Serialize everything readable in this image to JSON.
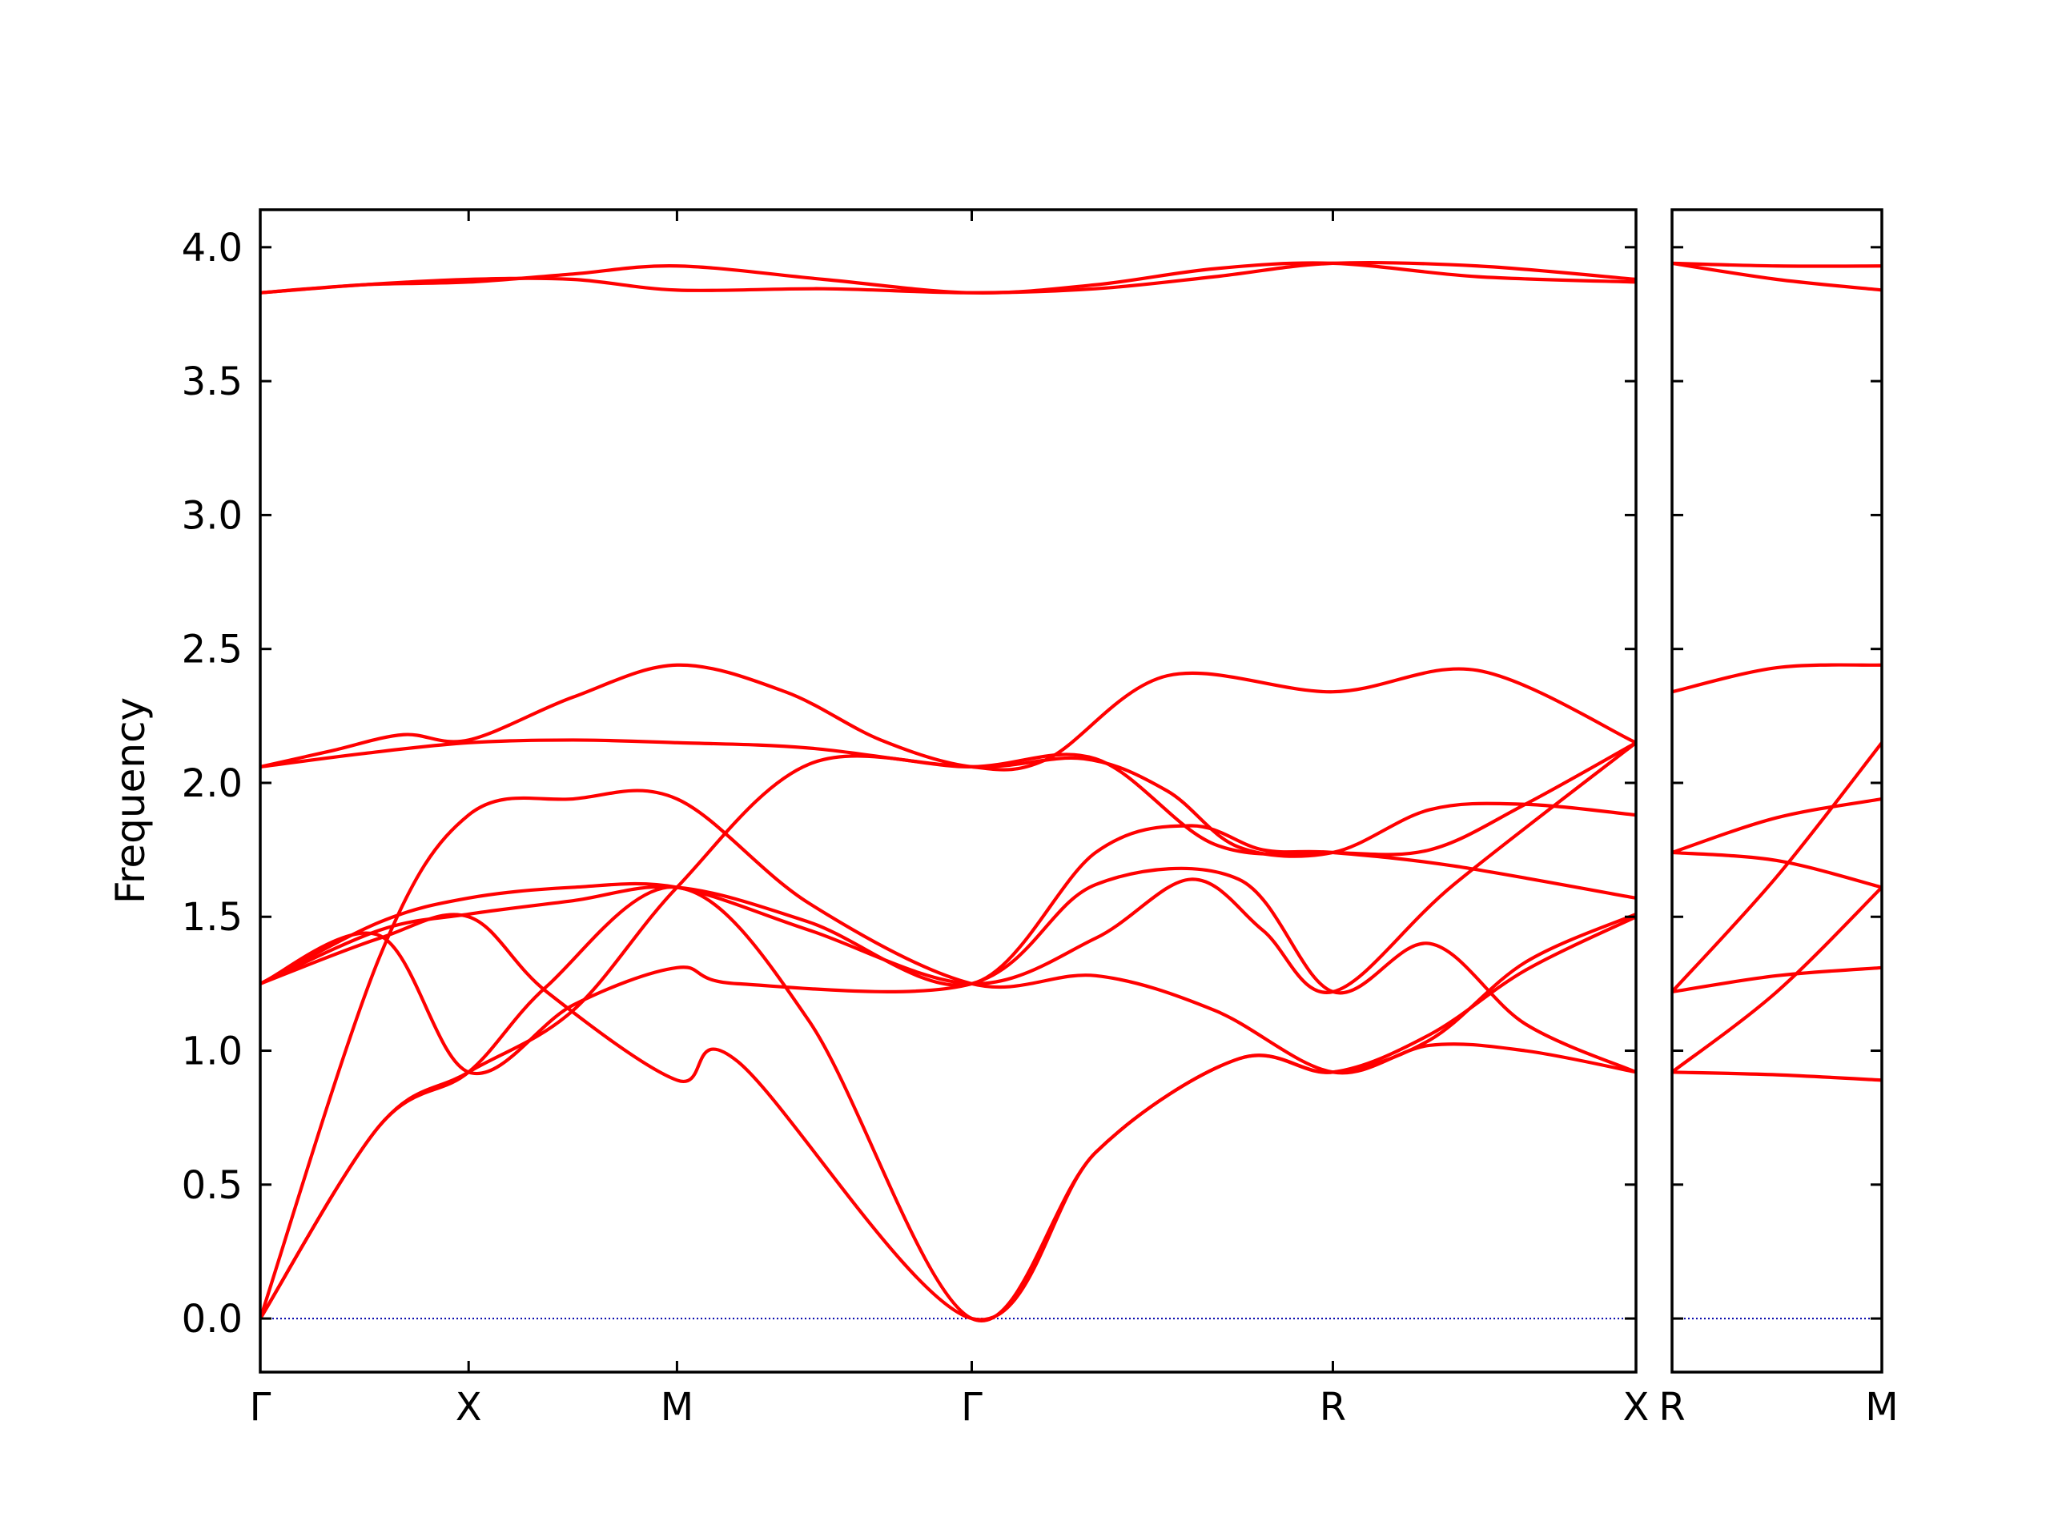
{
  "chart_data": {
    "type": "line",
    "title": "",
    "xlabel": "",
    "ylabel": "Frequency",
    "ylim": [
      -0.2,
      4.14
    ],
    "yticks": [
      "0.0",
      "0.5",
      "1.0",
      "1.5",
      "2.0",
      "2.5",
      "3.0",
      "3.5",
      "4.0"
    ],
    "ytick_values": [
      0.0,
      0.5,
      1.0,
      1.5,
      2.0,
      2.5,
      3.0,
      3.5,
      4.0
    ],
    "grid": false,
    "legend": "none",
    "line_color": "#ff0000",
    "zero_line_color": "#0000aa",
    "panels": [
      {
        "name": "main",
        "xlim": [
          0,
          5.764
        ],
        "high_symmetry_points": [
          {
            "label": "Γ",
            "x": 0
          },
          {
            "label": "X",
            "x": 0.873
          },
          {
            "label": "M",
            "x": 1.746
          },
          {
            "label": "Γ",
            "x": 2.981
          },
          {
            "label": "R",
            "x": 4.494
          },
          {
            "label": "X",
            "x": 5.764
          }
        ],
        "bands": [
          [
            [
              0,
              3.83
            ],
            [
              0.436,
              3.86
            ],
            [
              0.873,
              3.88
            ],
            [
              1.31,
              3.88
            ],
            [
              1.746,
              3.84
            ],
            [
              2.36,
              3.845
            ],
            [
              2.981,
              3.83
            ],
            [
              3.5,
              3.845
            ],
            [
              4.0,
              3.89
            ],
            [
              4.494,
              3.94
            ],
            [
              5.1,
              3.93
            ],
            [
              5.764,
              3.88
            ]
          ],
          [
            [
              0,
              3.83
            ],
            [
              0.436,
              3.86
            ],
            [
              0.873,
              3.87
            ],
            [
              1.31,
              3.9
            ],
            [
              1.746,
              3.93
            ],
            [
              2.36,
              3.88
            ],
            [
              2.981,
              3.83
            ],
            [
              3.5,
              3.86
            ],
            [
              4.0,
              3.92
            ],
            [
              4.494,
              3.94
            ],
            [
              5.1,
              3.89
            ],
            [
              5.764,
              3.87
            ]
          ],
          [
            [
              0,
              2.06
            ],
            [
              0.3,
              2.12
            ],
            [
              0.6,
              2.18
            ],
            [
              0.873,
              2.16
            ],
            [
              1.31,
              2.32
            ],
            [
              1.746,
              2.44
            ],
            [
              2.2,
              2.34
            ],
            [
              2.6,
              2.16
            ],
            [
              2.981,
              2.06
            ],
            [
              3.3,
              2.09
            ],
            [
              3.8,
              2.4
            ],
            [
              4.494,
              2.34
            ],
            [
              5.1,
              2.42
            ],
            [
              5.764,
              2.15
            ]
          ],
          [
            [
              0,
              2.06
            ],
            [
              0.436,
              2.11
            ],
            [
              0.873,
              2.15
            ],
            [
              1.31,
              2.16
            ],
            [
              1.746,
              2.15
            ],
            [
              2.3,
              2.13
            ],
            [
              2.981,
              2.06
            ],
            [
              3.45,
              2.09
            ],
            [
              3.8,
              1.97
            ],
            [
              4.1,
              1.76
            ],
            [
              4.494,
              1.74
            ],
            [
              4.9,
              1.9
            ],
            [
              5.3,
              1.92
            ],
            [
              5.764,
              1.88
            ]
          ],
          [
            [
              0,
              1.25
            ],
            [
              0.5,
              1.48
            ],
            [
              0.873,
              1.57
            ],
            [
              1.31,
              1.61
            ],
            [
              1.746,
              1.61
            ],
            [
              2.3,
              1.45
            ],
            [
              2.981,
              1.25
            ],
            [
              3.5,
              1.42
            ],
            [
              3.9,
              1.64
            ],
            [
              4.2,
              1.45
            ],
            [
              4.494,
              1.22
            ],
            [
              5.0,
              1.62
            ],
            [
              5.764,
              2.15
            ]
          ],
          [
            [
              0,
              1.25
            ],
            [
              0.5,
              1.45
            ],
            [
              0.873,
              1.51
            ],
            [
              1.31,
              1.56
            ],
            [
              1.746,
              1.61
            ],
            [
              2.3,
              1.48
            ],
            [
              2.981,
              1.25
            ],
            [
              3.5,
              1.74
            ],
            [
              3.9,
              1.84
            ],
            [
              4.2,
              1.75
            ],
            [
              4.494,
              1.74
            ],
            [
              5.0,
              1.69
            ],
            [
              5.764,
              1.57
            ]
          ],
          [
            [
              0,
              0
            ],
            [
              0.5,
              1.35
            ],
            [
              0.873,
              1.88
            ],
            [
              1.31,
              1.94
            ],
            [
              1.746,
              1.94
            ],
            [
              2.3,
              1.55
            ],
            [
              2.981,
              1.25
            ],
            [
              3.5,
              1.28
            ],
            [
              4.0,
              1.15
            ],
            [
              4.494,
              0.92
            ],
            [
              4.9,
              1.02
            ],
            [
              5.3,
              1.0
            ],
            [
              5.764,
              0.92
            ]
          ],
          [
            [
              0,
              0
            ],
            [
              0.5,
              0.72
            ],
            [
              0.873,
              0.92
            ],
            [
              1.31,
              1.15
            ],
            [
              1.746,
              1.61
            ],
            [
              2.3,
              2.07
            ],
            [
              2.981,
              2.06
            ],
            [
              3.5,
              2.09
            ],
            [
              4.0,
              1.77
            ],
            [
              4.494,
              1.74
            ],
            [
              4.9,
              1.75
            ],
            [
              5.3,
              1.92
            ],
            [
              5.764,
              2.15
            ]
          ],
          [
            [
              0,
              0
            ],
            [
              0.5,
              0.72
            ],
            [
              0.873,
              0.92
            ],
            [
              1.2,
              1.24
            ],
            [
              1.746,
              1.61
            ],
            [
              2.3,
              1.11
            ],
            [
              2.981,
              0
            ],
            [
              3.5,
              0.62
            ],
            [
              4.1,
              0.97
            ],
            [
              4.494,
              0.92
            ],
            [
              4.9,
              1.06
            ],
            [
              5.3,
              1.3
            ],
            [
              5.764,
              1.5
            ]
          ],
          [
            [
              0,
              1.25
            ],
            [
              0.5,
              1.42
            ],
            [
              0.873,
              1.5
            ],
            [
              1.2,
              1.22
            ],
            [
              1.746,
              0.89
            ],
            [
              2.0,
              0.96
            ],
            [
              2.981,
              0
            ],
            [
              3.5,
              0.62
            ],
            [
              4.1,
              0.97
            ],
            [
              4.494,
              0.92
            ],
            [
              4.9,
              1.04
            ],
            [
              5.3,
              1.33
            ],
            [
              5.764,
              1.51
            ]
          ],
          [
            [
              0,
              1.25
            ],
            [
              0.5,
              1.43
            ],
            [
              0.873,
              0.92
            ],
            [
              1.31,
              1.17
            ],
            [
              1.746,
              1.31
            ],
            [
              2.0,
              1.25
            ],
            [
              2.981,
              1.25
            ],
            [
              3.5,
              1.62
            ],
            [
              4.1,
              1.64
            ],
            [
              4.494,
              1.22
            ],
            [
              4.9,
              1.4
            ],
            [
              5.3,
              1.1
            ],
            [
              5.764,
              0.92
            ]
          ]
        ]
      },
      {
        "name": "R-M",
        "xlim": [
          0,
          0.873
        ],
        "high_symmetry_points": [
          {
            "label": "R",
            "x": 0
          },
          {
            "label": "M",
            "x": 0.873
          }
        ],
        "bands": [
          [
            [
              0,
              3.94
            ],
            [
              0.436,
              3.93
            ],
            [
              0.873,
              3.93
            ]
          ],
          [
            [
              0,
              3.94
            ],
            [
              0.436,
              3.88
            ],
            [
              0.873,
              3.84
            ]
          ],
          [
            [
              0,
              2.34
            ],
            [
              0.436,
              2.43
            ],
            [
              0.873,
              2.44
            ]
          ],
          [
            [
              0,
              1.74
            ],
            [
              0.436,
              1.71
            ],
            [
              0.873,
              1.61
            ]
          ],
          [
            [
              0,
              1.74
            ],
            [
              0.436,
              1.87
            ],
            [
              0.873,
              1.94
            ]
          ],
          [
            [
              0,
              1.22
            ],
            [
              0.436,
              1.65
            ],
            [
              0.873,
              2.15
            ]
          ],
          [
            [
              0,
              1.22
            ],
            [
              0.436,
              1.28
            ],
            [
              0.873,
              1.31
            ]
          ],
          [
            [
              0,
              0.92
            ],
            [
              0.436,
              1.22
            ],
            [
              0.873,
              1.61
            ]
          ],
          [
            [
              0,
              0.92
            ],
            [
              0.436,
              0.91
            ],
            [
              0.873,
              0.89
            ]
          ]
        ]
      }
    ]
  }
}
